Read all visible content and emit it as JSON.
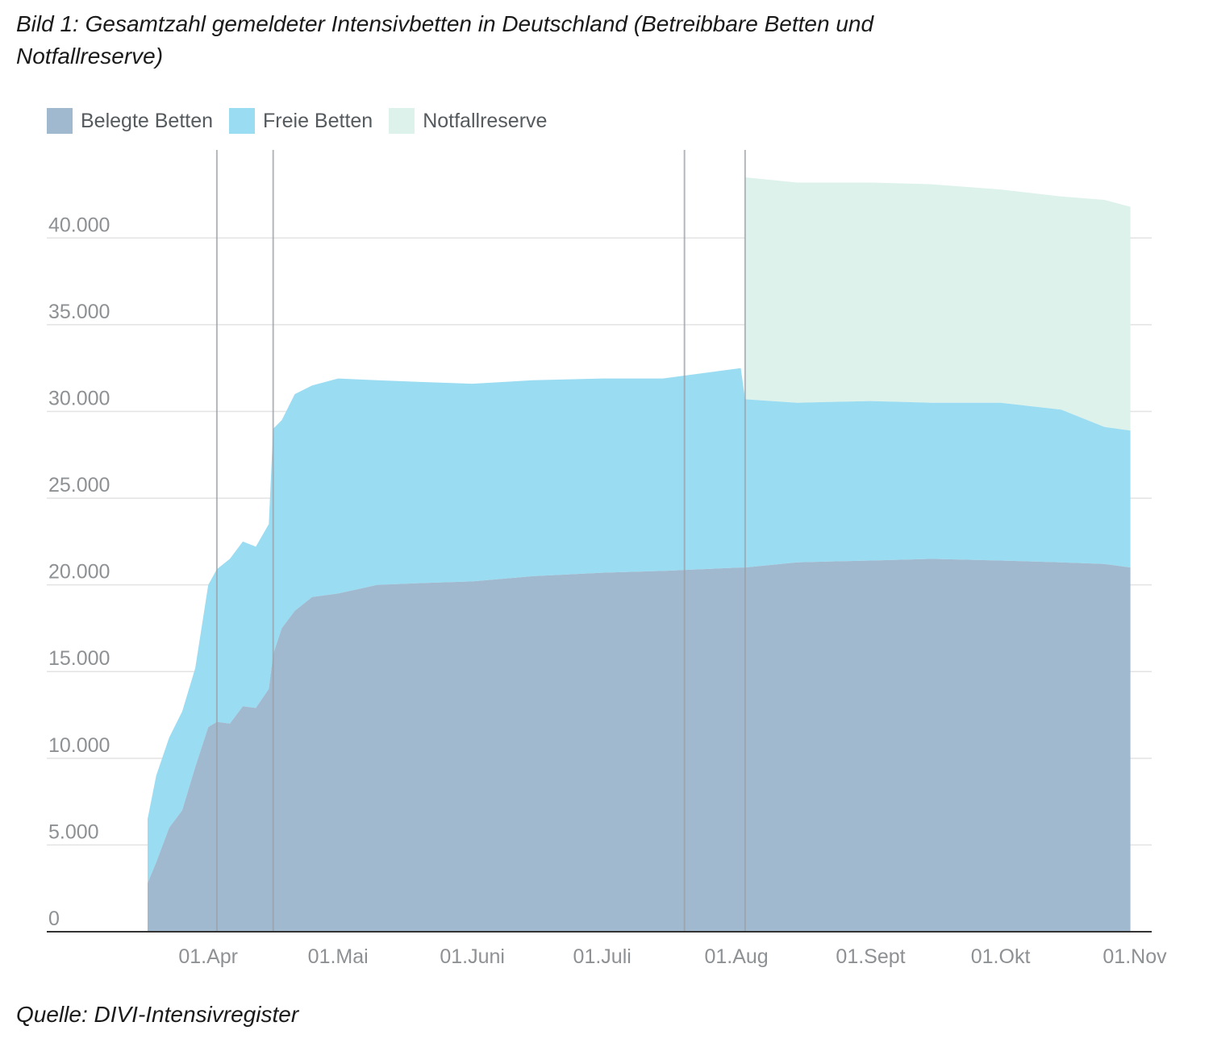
{
  "title": "Bild 1: Gesamtzahl gemeldeter Intensivbetten in Deutschland (Betreibbare Betten und Notfallreserve)",
  "source": "Quelle: DIVI-Intensivregister",
  "colors": {
    "belegt": "#a0b9cf",
    "frei": "#9adcf2",
    "notfall": "#dcf2eb",
    "vline": "#9aa0a6",
    "grid": "#e3e3e3",
    "axis": "#333333"
  },
  "chart_data": {
    "type": "area",
    "stacked": true,
    "title": "Bild 1: Gesamtzahl gemeldeter Intensivbetten in Deutschland (Betreibbare Betten und Notfallreserve)",
    "xlabel": "",
    "ylabel": "",
    "ylim": [
      0,
      45000
    ],
    "yticks": [
      0,
      5000,
      10000,
      15000,
      20000,
      25000,
      30000,
      35000,
      40000
    ],
    "ytick_labels": [
      "0",
      "5.000",
      "10.000",
      "15.000",
      "20.000",
      "25.000",
      "30.000",
      "35.000",
      "40.000"
    ],
    "xtick_labels": [
      "01.Apr",
      "01.Mai",
      "01.Juni",
      "01.Juli",
      "01.Aug",
      "01.Sept",
      "01.Okt",
      "01.Nov"
    ],
    "xtick_dates": [
      "2020-04-01",
      "2020-05-01",
      "2020-06-01",
      "2020-07-01",
      "2020-08-01",
      "2020-09-01",
      "2020-10-01",
      "2020-11-01"
    ],
    "xlim": [
      "2020-03-18",
      "2020-11-04"
    ],
    "grid": true,
    "legend_position": "top-left",
    "vertical_lines": [
      "2020-04-03",
      "2020-04-16",
      "2020-07-20",
      "2020-08-03"
    ],
    "x": [
      "2020-03-18",
      "2020-03-20",
      "2020-03-23",
      "2020-03-26",
      "2020-03-29",
      "2020-04-01",
      "2020-04-03",
      "2020-04-06",
      "2020-04-09",
      "2020-04-12",
      "2020-04-15",
      "2020-04-16",
      "2020-04-18",
      "2020-04-21",
      "2020-04-25",
      "2020-05-01",
      "2020-05-10",
      "2020-05-20",
      "2020-06-01",
      "2020-06-15",
      "2020-07-01",
      "2020-07-15",
      "2020-08-02",
      "2020-08-03",
      "2020-08-15",
      "2020-09-01",
      "2020-09-15",
      "2020-10-01",
      "2020-10-15",
      "2020-10-25",
      "2020-10-31"
    ],
    "series": [
      {
        "name": "Belegte Betten",
        "values": [
          2800,
          4000,
          6000,
          7000,
          9500,
          11800,
          12100,
          12000,
          13000,
          12900,
          14000,
          16000,
          17500,
          18500,
          19300,
          19500,
          20000,
          20100,
          20200,
          20500,
          20700,
          20800,
          21000,
          21000,
          21300,
          21400,
          21500,
          21400,
          21300,
          21200,
          21000
        ]
      },
      {
        "name": "Freie Betten",
        "values": [
          3700,
          5000,
          5200,
          5700,
          5700,
          8200,
          8800,
          9500,
          9500,
          9300,
          9500,
          13000,
          12000,
          12500,
          12200,
          12400,
          11800,
          11600,
          11400,
          11300,
          11200,
          11100,
          11500,
          9700,
          9200,
          9200,
          9000,
          9100,
          8800,
          7900,
          7900
        ]
      },
      {
        "name": "Notfallreserve",
        "values": [
          0,
          0,
          0,
          0,
          0,
          0,
          0,
          0,
          0,
          0,
          0,
          0,
          0,
          0,
          0,
          0,
          0,
          0,
          0,
          0,
          0,
          0,
          0,
          12800,
          12700,
          12600,
          12600,
          12300,
          12300,
          13100,
          12900
        ]
      }
    ]
  }
}
